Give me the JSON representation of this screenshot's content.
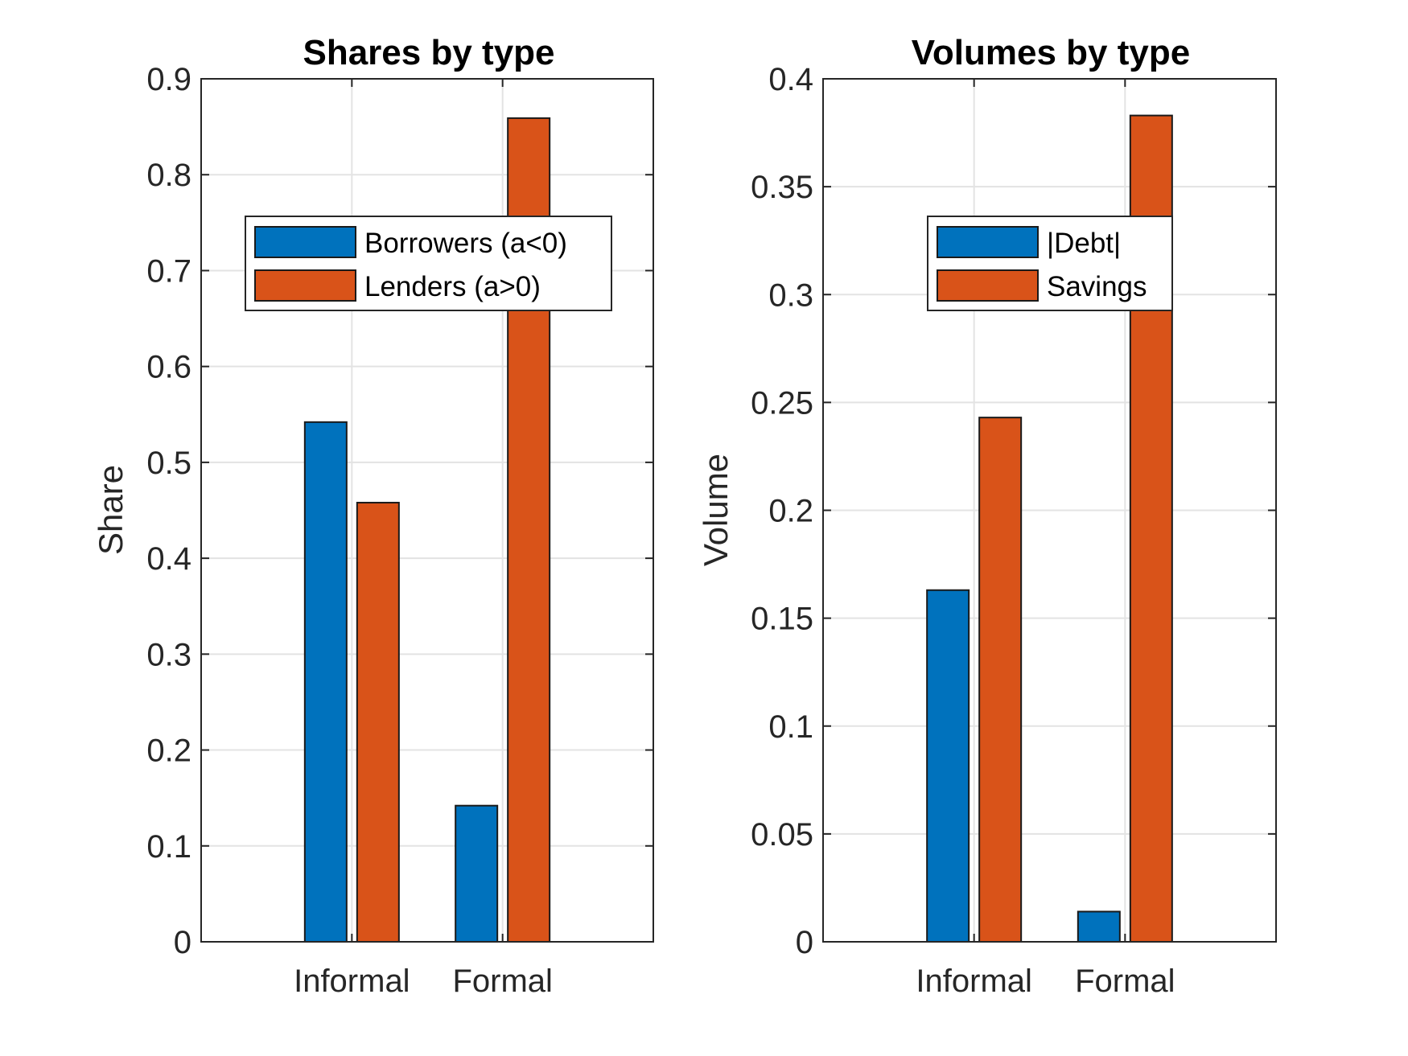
{
  "chart_data": [
    {
      "type": "bar",
      "title": "Shares by type",
      "xlabel": "",
      "ylabel": "Share",
      "categories": [
        "Informal",
        "Formal"
      ],
      "series": [
        {
          "name": "Borrowers (a<0)",
          "values": [
            0.542,
            0.142
          ],
          "color": "#0072BD"
        },
        {
          "name": "Lenders (a>0)",
          "values": [
            0.458,
            0.859
          ],
          "color": "#D95319"
        }
      ],
      "ylim": [
        0,
        0.9
      ],
      "yticks": [
        0,
        0.1,
        0.2,
        0.3,
        0.4,
        0.5,
        0.6,
        0.7,
        0.8,
        0.9
      ],
      "ytick_labels": [
        "0",
        "0.1",
        "0.2",
        "0.3",
        "0.4",
        "0.5",
        "0.6",
        "0.7",
        "0.8",
        "0.9"
      ],
      "grid": true,
      "legend_position": "upper-center"
    },
    {
      "type": "bar",
      "title": "Volumes by type",
      "xlabel": "",
      "ylabel": "Volume",
      "categories": [
        "Informal",
        "Formal"
      ],
      "series": [
        {
          "name": "|Debt|",
          "values": [
            0.163,
            0.014
          ],
          "color": "#0072BD"
        },
        {
          "name": "Savings",
          "values": [
            0.243,
            0.383
          ],
          "color": "#D95319"
        }
      ],
      "ylim": [
        0,
        0.4
      ],
      "yticks": [
        0,
        0.05,
        0.1,
        0.15,
        0.2,
        0.25,
        0.3,
        0.35,
        0.4
      ],
      "ytick_labels": [
        "0",
        "0.05",
        "0.1",
        "0.15",
        "0.2",
        "0.25",
        "0.3",
        "0.35",
        "0.4"
      ],
      "grid": true,
      "legend_position": "upper-center"
    }
  ]
}
